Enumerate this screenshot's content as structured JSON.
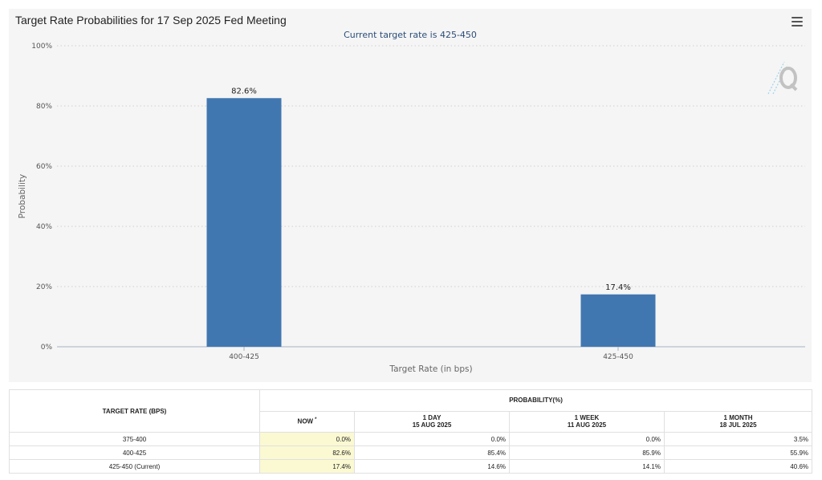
{
  "chart": {
    "title": "Target Rate Probabilities for 17 Sep 2025 Fed Meeting",
    "subtitle": "Current target rate is 425-450"
  },
  "chart_data": {
    "type": "bar",
    "title": "Target Rate Probabilities for 17 Sep 2025 Fed Meeting",
    "subtitle": "Current target rate is 425-450",
    "categories": [
      "400-425",
      "425-450"
    ],
    "values": [
      82.6,
      17.4
    ],
    "value_labels": [
      "82.6%",
      "17.4%"
    ],
    "xlabel": "Target Rate (in bps)",
    "ylabel": "Probability",
    "ylim": [
      0,
      100
    ],
    "yticks": [
      0,
      20,
      40,
      60,
      80,
      100
    ],
    "ytick_labels": [
      "0%",
      "20%",
      "40%",
      "60%",
      "80%",
      "100%"
    ],
    "grid": true,
    "bar_color": "#4177b0"
  },
  "icons": {
    "menu": "hamburger-menu-icon",
    "watermark": "q-logo-icon"
  },
  "table": {
    "rate_header": "TARGET RATE (BPS)",
    "prob_header": "PROBABILITY(%)",
    "columns": [
      {
        "line1": "NOW",
        "marker": "*",
        "line2": ""
      },
      {
        "line1": "1 DAY",
        "line2": "15 AUG 2025"
      },
      {
        "line1": "1 WEEK",
        "line2": "11 AUG 2025"
      },
      {
        "line1": "1 MONTH",
        "line2": "18 JUL 2025"
      }
    ],
    "rows": [
      {
        "rate": "375-400",
        "values": [
          "0.0%",
          "0.0%",
          "0.0%",
          "3.5%"
        ]
      },
      {
        "rate": "400-425",
        "values": [
          "82.6%",
          "85.4%",
          "85.9%",
          "55.9%"
        ]
      },
      {
        "rate": "425-450 (Current)",
        "values": [
          "17.4%",
          "14.6%",
          "14.1%",
          "40.6%"
        ]
      }
    ],
    "now_highlight_color": "#fbf9d2"
  }
}
